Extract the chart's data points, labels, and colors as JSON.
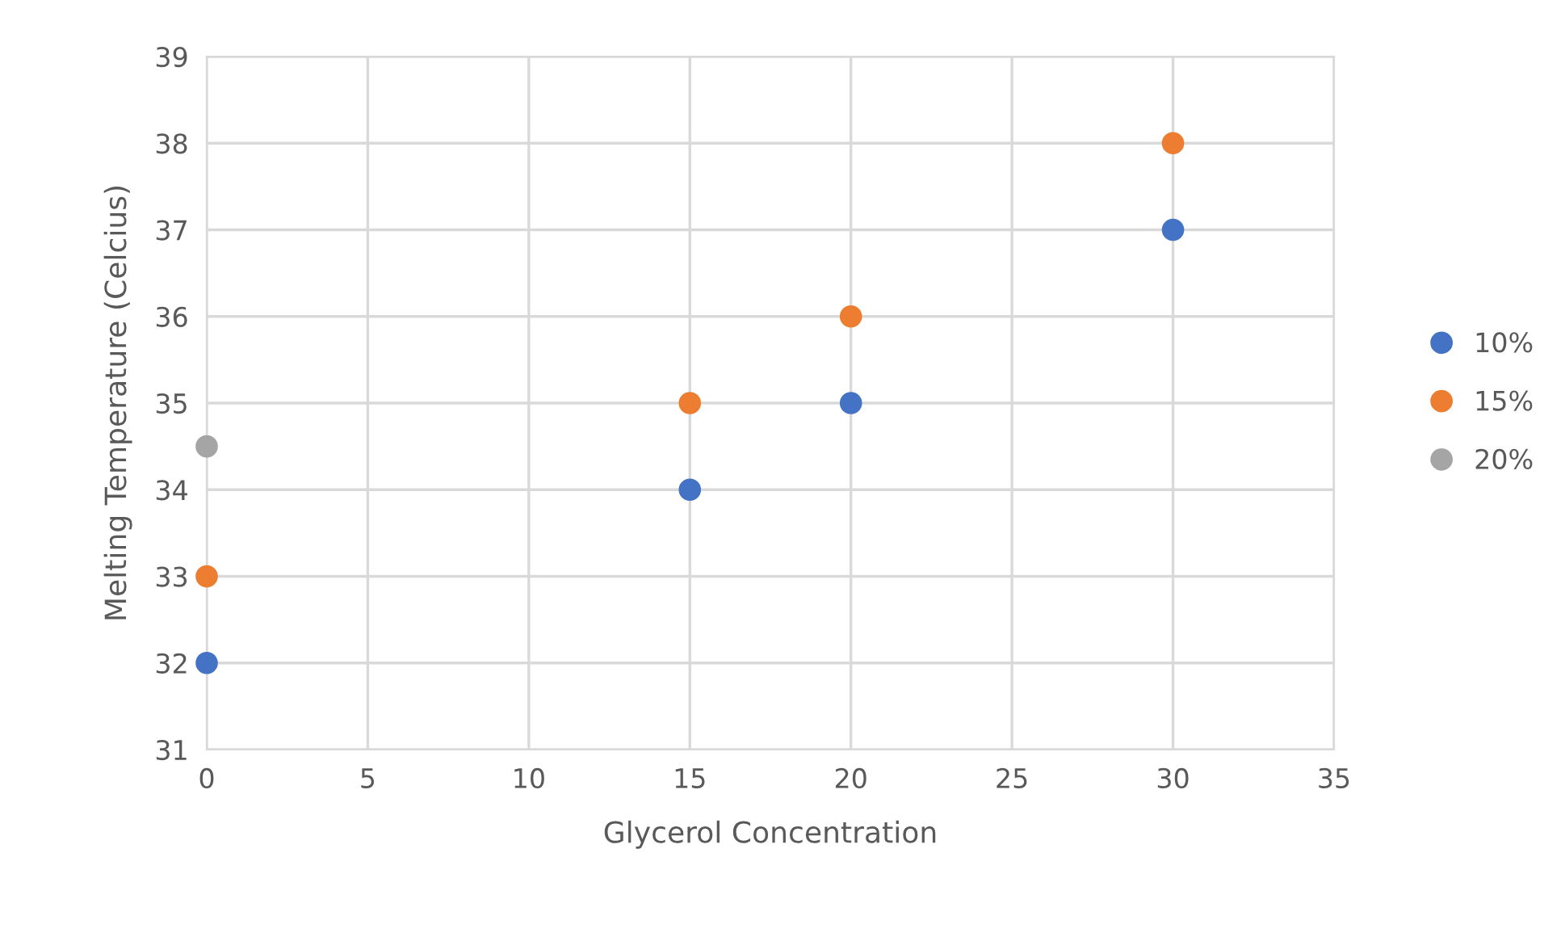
{
  "chart_data": {
    "type": "scatter",
    "xlabel": "Glycerol Concentration",
    "ylabel": "Melting Temperature (Celcius)",
    "series": [
      {
        "name": "10%",
        "color": "#4472c4",
        "x": [
          0,
          15,
          20,
          30
        ],
        "values": [
          32,
          34,
          35,
          37
        ]
      },
      {
        "name": "15%",
        "color": "#ed7d31",
        "x": [
          0,
          15,
          20,
          30
        ],
        "values": [
          33,
          35,
          36,
          38
        ]
      },
      {
        "name": "20%",
        "color": "#a5a5a5",
        "x": [
          0
        ],
        "values": [
          34.5
        ]
      }
    ],
    "xlim": [
      0,
      35
    ],
    "xticks": [
      0,
      5,
      10,
      15,
      20,
      25,
      30,
      35
    ],
    "ylim": [
      31,
      39
    ],
    "yticks": [
      31,
      32,
      33,
      34,
      35,
      36,
      37,
      38,
      39
    ],
    "grid": true,
    "legend": "right",
    "marker": "circle"
  }
}
